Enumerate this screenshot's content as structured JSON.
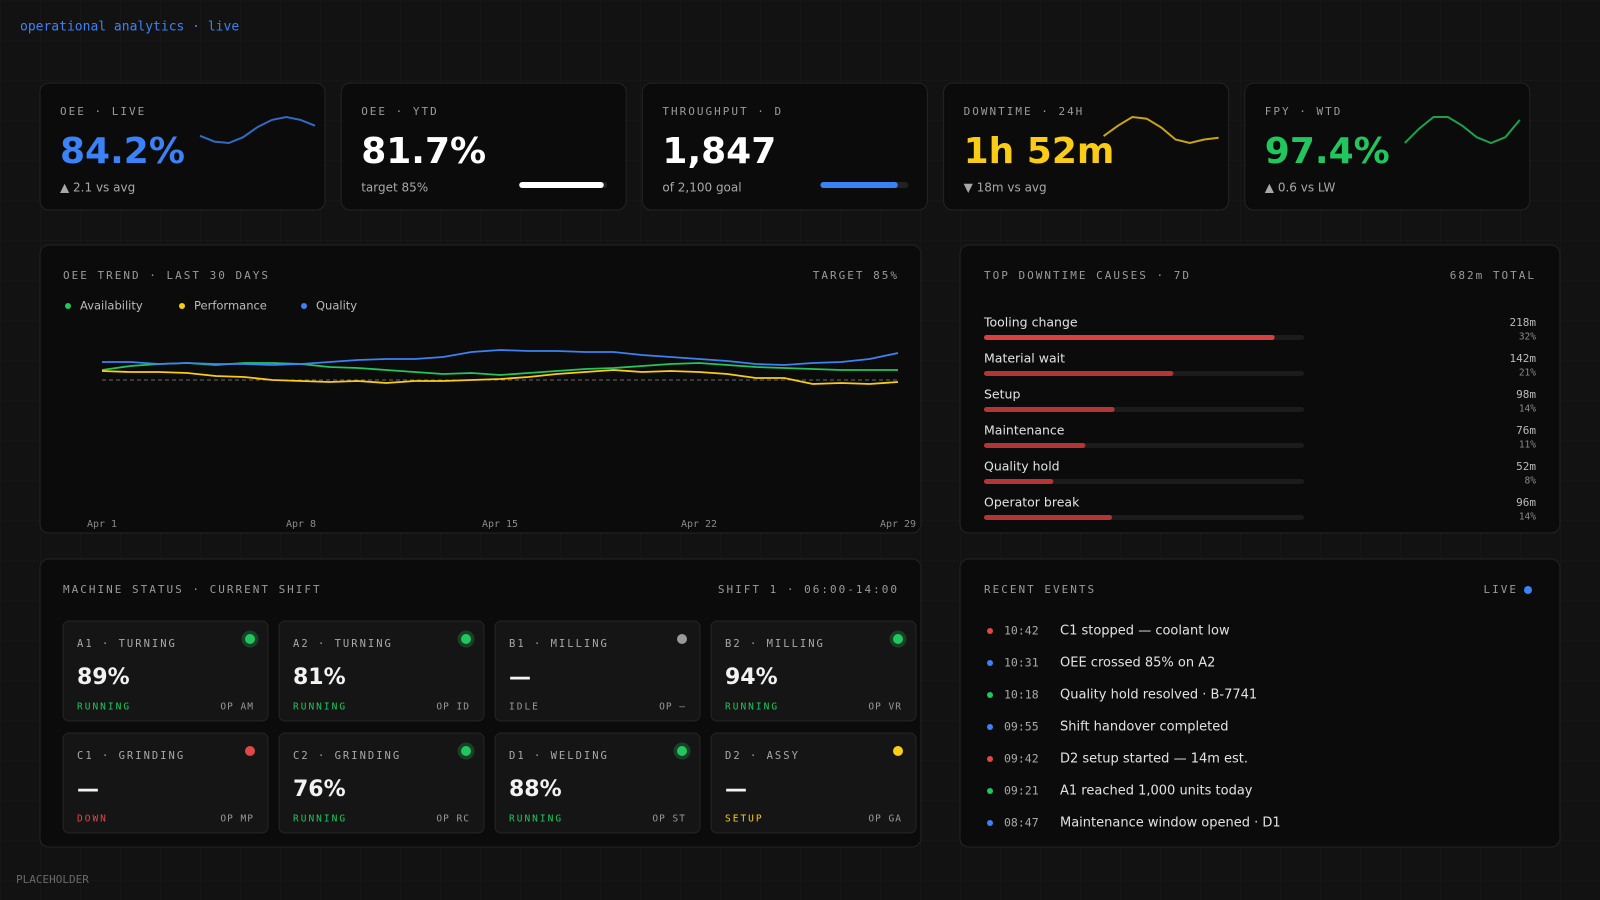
{
  "header": {
    "title": "operational analytics · live"
  },
  "kpis": [
    {
      "label": "OEE · LIVE",
      "value": 84.2,
      "value_label": "84.2%",
      "note": "▲ 2.1 vs avg",
      "color": "#3b82f6",
      "trend": [
        83.6,
        83.2,
        83.1,
        83.5,
        84.2,
        84.7,
        84.9,
        84.7,
        84.3
      ]
    },
    {
      "label": "OEE · YTD",
      "value": 81.7,
      "value_label": "81.7%",
      "note": "target 85%",
      "color": "#ffffff",
      "goal": 85,
      "bar_color": "#ffffff"
    },
    {
      "label": "THROUGHPUT · D",
      "value": 1847,
      "value_label": "1,847",
      "note": "of 2,100 goal",
      "color": "#ffffff",
      "goal": 2100,
      "bar_color": "#3b82f6"
    },
    {
      "label": "DOWNTIME · 24H",
      "value": 112,
      "value_label": "1h 52m",
      "note": "▼ 18m vs avg",
      "color": "#facc15",
      "trend": [
        1.6,
        2.2,
        2.7,
        2.6,
        2.1,
        1.4,
        1.2,
        1.4,
        1.5
      ]
    },
    {
      "label": "FPY · WTD",
      "value": 97.4,
      "value_label": "97.4%",
      "note": "▲ 0.6 vs LW",
      "color": "#22c55e",
      "trend": [
        96.5,
        97.0,
        97.4,
        97.4,
        97.1,
        96.7,
        96.5,
        96.7,
        97.3
      ]
    }
  ],
  "chart_data": [
    {
      "type": "line",
      "title": "OEE TREND · LAST 30 DAYS",
      "annotation": "TARGET 85%",
      "target": 85,
      "ylim": [
        60,
        95
      ],
      "categories": [
        "Apr 1",
        null,
        null,
        null,
        null,
        null,
        null,
        "Apr 8",
        null,
        null,
        null,
        null,
        null,
        null,
        "Apr 15",
        null,
        null,
        null,
        null,
        null,
        null,
        "Apr 22",
        null,
        null,
        null,
        null,
        null,
        null,
        "Apr 29"
      ],
      "series": [
        {
          "name": "Availability",
          "color": "#22c55e",
          "values": [
            87.0,
            87.8,
            88.2,
            88.4,
            88.0,
            88.4,
            88.4,
            88.2,
            87.6,
            87.4,
            87.0,
            86.6,
            86.2,
            86.4,
            86.0,
            86.4,
            86.8,
            87.2,
            87.4,
            87.8,
            88.2,
            88.4,
            88.0,
            87.6,
            87.4,
            87.2,
            87.0,
            87.0,
            87.0
          ]
        },
        {
          "name": "Performance",
          "color": "#facc15",
          "values": [
            86.8,
            86.6,
            86.6,
            86.4,
            85.8,
            85.6,
            85.0,
            84.8,
            84.6,
            84.8,
            84.4,
            84.8,
            84.8,
            85.0,
            85.2,
            85.6,
            86.2,
            86.6,
            87.0,
            86.6,
            86.8,
            86.6,
            86.2,
            85.4,
            85.4,
            84.2,
            84.4,
            84.2,
            84.6
          ]
        },
        {
          "name": "Quality",
          "color": "#3b82f6",
          "values": [
            88.6,
            88.6,
            88.2,
            88.4,
            88.2,
            88.2,
            88.0,
            88.2,
            88.6,
            89.0,
            89.2,
            89.2,
            89.6,
            90.6,
            91.0,
            90.8,
            90.8,
            90.6,
            90.6,
            90.0,
            89.6,
            89.2,
            88.8,
            88.2,
            88.0,
            88.4,
            88.6,
            89.2,
            90.4
          ]
        }
      ]
    },
    {
      "type": "bar",
      "orientation": "horizontal",
      "title": "TOP DOWNTIME CAUSES · 7D",
      "subtitle": "682m TOTAL",
      "xlim": [
        0,
        240
      ],
      "categories": [
        "Tooling change",
        "Material wait",
        "Setup",
        "Maintenance",
        "Quality hold",
        "Operator break"
      ],
      "values": [
        218,
        142,
        98,
        76,
        52,
        96
      ],
      "value_labels": [
        "218m",
        "142m",
        "98m",
        "76m",
        "52m",
        "96m"
      ],
      "shares": [
        "32%",
        "21%",
        "14%",
        "11%",
        "8%",
        "14%"
      ],
      "colors": [
        "#d94141",
        "#b23636",
        "#b23636",
        "#b23636",
        "#b23636",
        "#b23636"
      ]
    }
  ],
  "machines": {
    "title": "MACHINE STATUS · CURRENT SHIFT",
    "shift": "SHIFT 1 · 06:00-14:00",
    "items": [
      {
        "name": "A1 · TURNING",
        "value": "89%",
        "status": "RUNNING",
        "operator": "OP AM",
        "color": "#22c55e"
      },
      {
        "name": "A2 · TURNING",
        "value": "81%",
        "status": "RUNNING",
        "operator": "OP ID",
        "color": "#22c55e"
      },
      {
        "name": "B1 · MILLING",
        "value": "—",
        "status": "IDLE",
        "operator": "OP —",
        "color": "#9a9a9a"
      },
      {
        "name": "B2 · MILLING",
        "value": "94%",
        "status": "RUNNING",
        "operator": "OP VR",
        "color": "#22c55e"
      },
      {
        "name": "C1 · GRINDING",
        "value": "—",
        "status": "DOWN",
        "operator": "OP MP",
        "color": "#e04848"
      },
      {
        "name": "C2 · GRINDING",
        "value": "76%",
        "status": "RUNNING",
        "operator": "OP RC",
        "color": "#22c55e"
      },
      {
        "name": "D1 · WELDING",
        "value": "88%",
        "status": "RUNNING",
        "operator": "OP ST",
        "color": "#22c55e"
      },
      {
        "name": "D2 · ASSY",
        "value": "—",
        "status": "SETUP",
        "operator": "OP GA",
        "color": "#facc15"
      }
    ]
  },
  "events": {
    "title": "RECENT EVENTS",
    "live": "LIVE",
    "items": [
      {
        "time": "10:42",
        "text": "C1 stopped — coolant low",
        "color": "#e04848"
      },
      {
        "time": "10:31",
        "text": "OEE crossed 85% on A2",
        "color": "#3b82f6"
      },
      {
        "time": "10:18",
        "text": "Quality hold resolved · B-7741",
        "color": "#22c55e"
      },
      {
        "time": "09:55",
        "text": "Shift handover completed",
        "color": "#3b82f6"
      },
      {
        "time": "09:42",
        "text": "D2 setup started — 14m est.",
        "color": "#e04848"
      },
      {
        "time": "09:21",
        "text": "A1 reached 1,000 units today",
        "color": "#22c55e"
      },
      {
        "time": "08:47",
        "text": "Maintenance window opened · D1",
        "color": "#3b82f6"
      }
    ]
  },
  "footer": {
    "text": "PLACEHOLDER"
  }
}
